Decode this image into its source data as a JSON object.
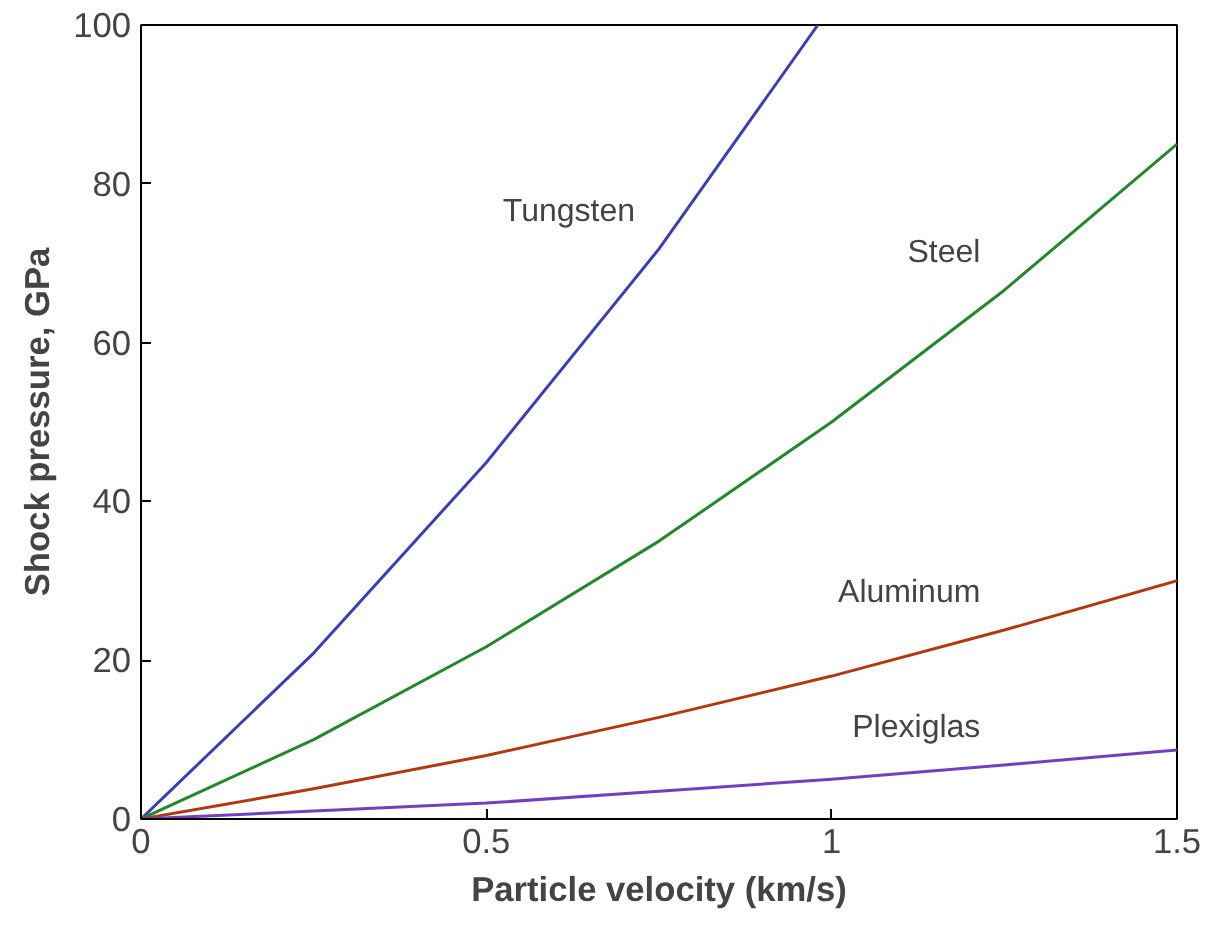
{
  "chart_data": {
    "type": "line",
    "xlabel": "Particle velocity (km/s)",
    "ylabel": "Shock pressure, GPa",
    "xlim": [
      0,
      1.5
    ],
    "ylim": [
      0,
      100
    ],
    "xticks": [
      0,
      0.5,
      1,
      1.5
    ],
    "yticks": [
      0,
      20,
      40,
      60,
      80,
      100
    ],
    "grid": false,
    "marker": "none",
    "line_style": "solid",
    "series": [
      {
        "name": "Tungsten",
        "color": "#3b3fb5",
        "x": [
          0,
          0.25,
          0.5,
          0.75,
          0.98
        ],
        "values": [
          0,
          20.9,
          44.9,
          71.8,
          100
        ]
      },
      {
        "name": "Steel",
        "color": "#22882a",
        "x": [
          0,
          0.25,
          0.5,
          0.75,
          1,
          1.25,
          1.5
        ],
        "values": [
          0,
          10,
          21.7,
          35,
          50,
          66.6,
          85
        ]
      },
      {
        "name": "Aluminum",
        "color": "#b03a10",
        "x": [
          0,
          0.25,
          0.5,
          0.75,
          1,
          1.25,
          1.5
        ],
        "values": [
          0,
          3.8,
          8,
          12.8,
          18,
          23.8,
          30
        ]
      },
      {
        "name": "Plexiglas",
        "color": "#7040c0",
        "x": [
          0,
          0.25,
          0.5,
          0.75,
          1,
          1.25,
          1.5
        ],
        "values": [
          0,
          1,
          2,
          3.5,
          5,
          6.8,
          8.7
        ]
      }
    ]
  }
}
